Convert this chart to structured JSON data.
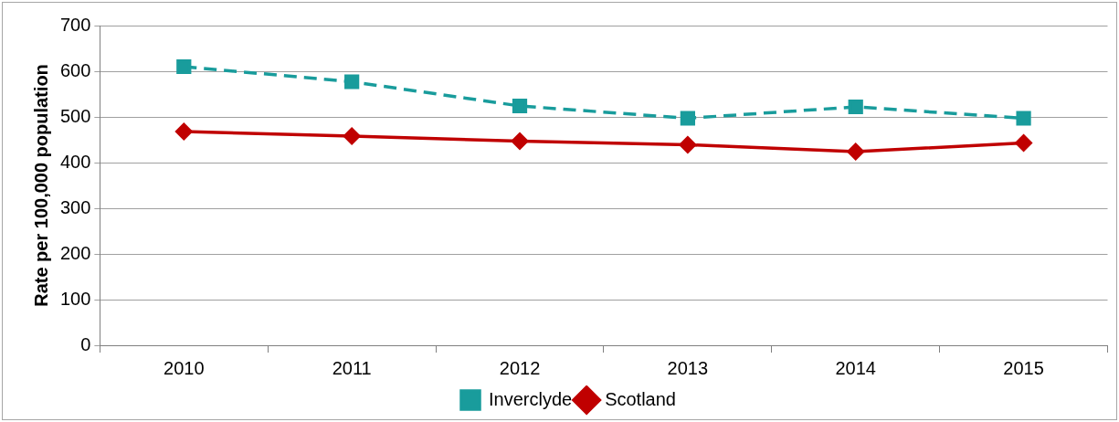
{
  "chart_data": {
    "type": "line",
    "ylabel": "Rate per 100,000 population",
    "categories": [
      "2010",
      "2011",
      "2012",
      "2013",
      "2014",
      "2015"
    ],
    "series": [
      {
        "name": "Inverclyde",
        "color": "#199c9c",
        "values": [
          610,
          577,
          524,
          497,
          522,
          497
        ],
        "line_style": "dashed",
        "marker": "square"
      },
      {
        "name": "Scotland",
        "color": "#c00000",
        "values": [
          468,
          458,
          447,
          439,
          424,
          443
        ],
        "line_style": "solid",
        "marker": "diamond"
      }
    ],
    "ylim": [
      0,
      700
    ],
    "yticks": [
      0,
      100,
      200,
      300,
      400,
      500,
      600,
      700
    ],
    "grid": "y",
    "legend": "bottom"
  }
}
